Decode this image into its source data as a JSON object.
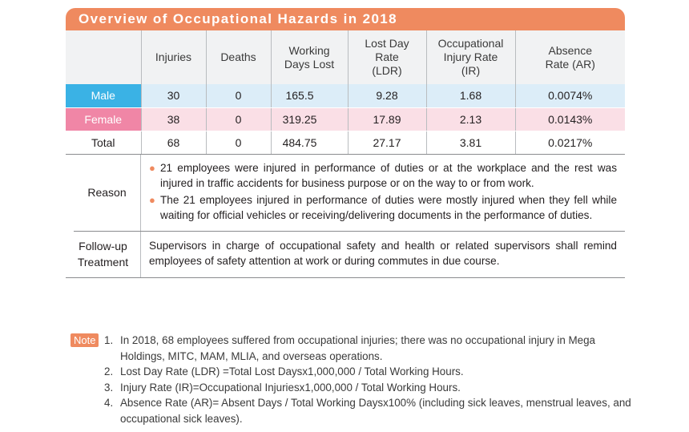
{
  "title": "Overview of Occupational Hazards in 2018",
  "table": {
    "headers": [
      "Injuries",
      "Deaths",
      "Working Days Lost",
      "Lost Day Rate (LDR)",
      "Occupational Injury Rate (IR)",
      "Absence Rate (AR)"
    ],
    "rows": [
      {
        "label": "Male",
        "injuries": "30",
        "deaths": "0",
        "days_lost": "165.5",
        "ldr": "9.28",
        "ir": "1.68",
        "ar": "0.0074%"
      },
      {
        "label": "Female",
        "injuries": "38",
        "deaths": "0",
        "days_lost": "319.25",
        "ldr": "17.89",
        "ir": "2.13",
        "ar": "0.0143%"
      },
      {
        "label": "Total",
        "injuries": "68",
        "deaths": "0",
        "days_lost": "484.75",
        "ldr": "27.17",
        "ir": "3.81",
        "ar": "0.0217%"
      }
    ]
  },
  "reason": {
    "label": "Reason",
    "bullets": [
      "21 employees were injured in performance of duties or at the workplace and the rest was injured in traffic accidents for business purpose or on the way to or from work.",
      "The 21 employees injured in performance of duties were mostly injured when they fell while waiting for official vehicles or receiving/delivering documents in the performance of duties."
    ]
  },
  "followup": {
    "label": "Follow-up Treatment",
    "text": "Supervisors in charge of occupational safety and health or related supervisors shall remind employees of safety attention at work or during commutes in due course."
  },
  "notes": {
    "badge": "Note",
    "items": [
      {
        "num": "1.",
        "text": "In 2018, 68 employees suffered from occupational injuries; there was no occupational injury in Mega Holdings, MITC, MAM, MLIA, and overseas operations."
      },
      {
        "num": "2.",
        "text": "Lost Day Rate (LDR) =Total Lost Daysx1,000,000 / Total Working Hours."
      },
      {
        "num": "3.",
        "text": "Injury Rate (IR)=Occupational Injuriesx1,000,000 / Total Working Hours."
      },
      {
        "num": "4.",
        "text": "Absence Rate (AR)= Absent Days / Total Working Daysx100% (including sick leaves, menstrual leaves, and occupational sick leaves)."
      }
    ]
  },
  "colors": {
    "accent": "#ef8a5f",
    "male": "#3ab2e5",
    "female": "#f086a6",
    "male_row": "#dcedf8",
    "female_row": "#fadfe6"
  }
}
